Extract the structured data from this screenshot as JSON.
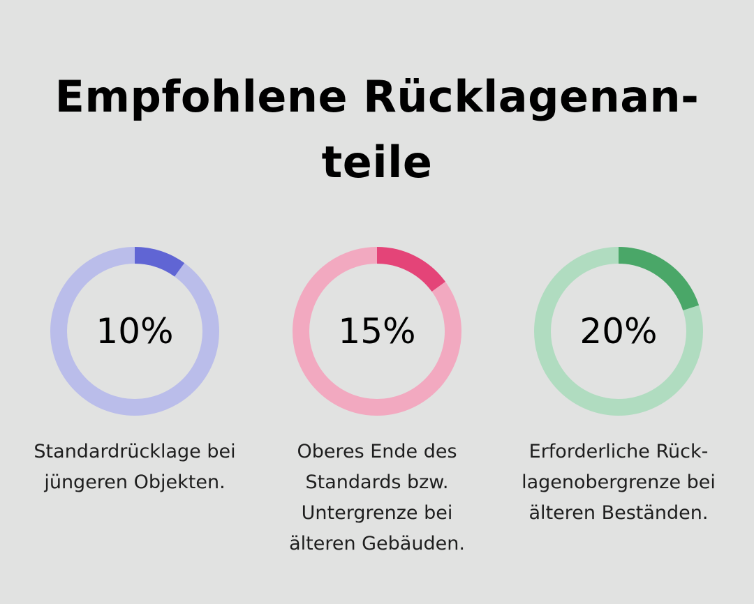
{
  "title": {
    "line1": "Empfohlene Rücklagenan-",
    "line2": "teile"
  },
  "chart_data": {
    "type": "donut",
    "items": [
      {
        "value": 10,
        "label": "10%",
        "description": [
          "Standardrücklage bei",
          "jüngeren Objekten."
        ],
        "color": "#6065d4",
        "track_color": "#babdea"
      },
      {
        "value": 15,
        "label": "15%",
        "description": [
          "Oberes Ende des",
          "Standards bzw.",
          "Untergrenze bei",
          "älteren Gebäuden."
        ],
        "color": "#e44478",
        "track_color": "#f2a9c0"
      },
      {
        "value": 20,
        "label": "20%",
        "description": [
          "Erforderliche Rück-",
          "lagenobergrenze bei",
          "älteren Beständen."
        ],
        "color": "#4aa768",
        "track_color": "#b0dcc0"
      }
    ]
  }
}
